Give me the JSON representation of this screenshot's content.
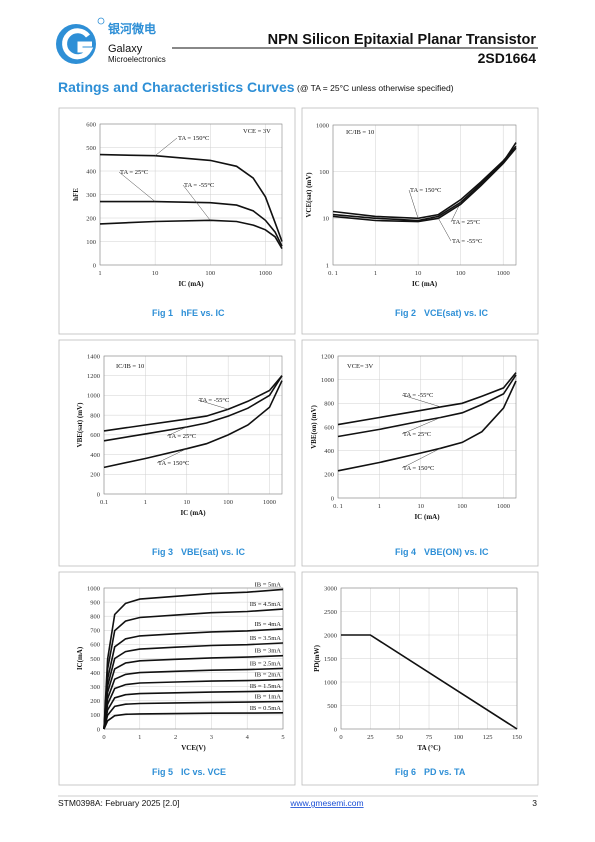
{
  "header": {
    "brand_cn": "银河微电",
    "brand": "Galaxy",
    "brand_sub": "Microelectronics",
    "title": "NPN Silicon Epitaxial Planar Transistor",
    "part": "2SD1664"
  },
  "section": {
    "title": "Ratings and Characteristics Curves",
    "condition": "(@ TA = 25°C unless otherwise specified)"
  },
  "chart_data": [
    {
      "type": "line",
      "fig": "Fig 1",
      "caption": "hFE vs. IC",
      "xlabel": "IC (mA)",
      "ylabel": "hFE",
      "annotation": "VCE = 3V",
      "xscale": "log",
      "xlim": [
        1,
        2000
      ],
      "ylim": [
        0,
        600
      ],
      "xticks": [
        1,
        10,
        100,
        1000
      ],
      "yticks": [
        0,
        100,
        200,
        300,
        400,
        500,
        600
      ],
      "grid": true,
      "x": [
        1,
        10,
        100,
        300,
        600,
        1000,
        1500,
        2000
      ],
      "series": [
        {
          "name": "TA = 150°C",
          "color": "#111111",
          "values": [
            470,
            465,
            445,
            420,
            370,
            290,
            180,
            100
          ]
        },
        {
          "name": "TA = 25°C",
          "color": "#111111",
          "values": [
            270,
            270,
            265,
            255,
            230,
            190,
            140,
            80
          ]
        },
        {
          "name": "TA = -55°C",
          "color": "#111111",
          "values": [
            175,
            185,
            190,
            185,
            170,
            150,
            120,
            70
          ]
        }
      ]
    },
    {
      "type": "line",
      "fig": "Fig 2",
      "caption": "VCE(sat) vs. IC",
      "xlabel": "IC (mA)",
      "ylabel": "VCE(sat) (mV)",
      "annotation": "IC/IB = 10",
      "xscale": "log",
      "yscale": "log",
      "xlim": [
        0.1,
        2000
      ],
      "ylim": [
        1,
        1000
      ],
      "xticks": [
        {
          "value": 0.1,
          "label": "0. 1"
        },
        1,
        10,
        100,
        1000
      ],
      "yticks": [
        1,
        10,
        100,
        1000
      ],
      "grid": true,
      "x": [
        0.1,
        1,
        10,
        30,
        100,
        300,
        1000,
        2000
      ],
      "series": [
        {
          "name": "TA = 150°C",
          "color": "#111111",
          "values": [
            14,
            11,
            10,
            12,
            25,
            60,
            170,
            350
          ]
        },
        {
          "name": "TA = 25°C",
          "color": "#111111",
          "values": [
            12,
            10,
            9,
            11,
            22,
            55,
            160,
            420
          ]
        },
        {
          "name": "TA = -55°C",
          "color": "#111111",
          "values": [
            11,
            9,
            8.5,
            10,
            20,
            50,
            150,
            320
          ]
        }
      ]
    },
    {
      "type": "line",
      "fig": "Fig 3",
      "caption": "VBE(sat) vs. IC",
      "xlabel": "IC (mA)",
      "ylabel": "VBE(sat) (mV)",
      "annotation": "IC/IB = 10",
      "xscale": "log",
      "xlim": [
        0.1,
        2000
      ],
      "ylim": [
        0,
        1400
      ],
      "xticks": [
        {
          "value": 0.1,
          "label": "0.1"
        },
        1,
        10,
        100,
        1000
      ],
      "yticks": [
        0,
        200,
        400,
        600,
        800,
        1000,
        1200,
        1400
      ],
      "grid": true,
      "x": [
        0.1,
        1,
        10,
        30,
        100,
        300,
        1000,
        2000
      ],
      "series": [
        {
          "name": "TA = -55°C",
          "color": "#111111",
          "values": [
            640,
            700,
            760,
            790,
            860,
            940,
            1050,
            1200
          ]
        },
        {
          "name": "TA = 25°C",
          "color": "#111111",
          "values": [
            540,
            610,
            680,
            720,
            790,
            870,
            1000,
            1200
          ]
        },
        {
          "name": "TA = 150°C",
          "color": "#111111",
          "values": [
            270,
            360,
            460,
            510,
            600,
            700,
            880,
            1150
          ]
        }
      ]
    },
    {
      "type": "line",
      "fig": "Fig 4",
      "caption": "VBE(ON) vs. IC",
      "xlabel": "IC (mA)",
      "ylabel": "VBE(on) (mV)",
      "annotation": "VCE= 3V",
      "xscale": "log",
      "xlim": [
        0.1,
        2000
      ],
      "ylim": [
        0,
        1200
      ],
      "xticks": [
        {
          "value": 0.1,
          "label": "0. 1"
        },
        1,
        10,
        100,
        1000
      ],
      "yticks": [
        0,
        200,
        400,
        600,
        800,
        1000,
        1200
      ],
      "grid": true,
      "x": [
        0.1,
        1,
        10,
        30,
        100,
        300,
        1000,
        2000
      ],
      "series": [
        {
          "name": "TA = -55°C",
          "color": "#111111",
          "values": [
            620,
            680,
            740,
            770,
            800,
            860,
            930,
            1060
          ]
        },
        {
          "name": "TA = 25°C",
          "color": "#111111",
          "values": [
            520,
            580,
            650,
            680,
            720,
            790,
            880,
            1040
          ]
        },
        {
          "name": "TA = 150°C",
          "color": "#111111",
          "values": [
            230,
            300,
            380,
            420,
            470,
            560,
            760,
            990
          ]
        }
      ]
    },
    {
      "type": "line",
      "fig": "Fig 5",
      "caption": "IC vs. VCE",
      "xlabel": "VCE(V)",
      "ylabel": "IC(mA)",
      "xlim": [
        0,
        5
      ],
      "ylim": [
        0,
        1000
      ],
      "xticks": [
        0,
        1,
        2,
        3,
        4,
        5
      ],
      "yticks": [
        0,
        100,
        200,
        300,
        400,
        500,
        600,
        700,
        800,
        900,
        1000
      ],
      "grid": true,
      "x": [
        0,
        0.1,
        0.3,
        0.6,
        1,
        2,
        3,
        4,
        5
      ],
      "series": [
        {
          "name": "IB = 0.5mA",
          "color": "#111111",
          "values": [
            0,
            58,
            94,
            104,
            107,
            109,
            112,
            113,
            115
          ]
        },
        {
          "name": "IB = 1mA",
          "color": "#111111",
          "values": [
            0,
            98,
            160,
            176,
            181,
            185,
            189,
            191,
            195
          ]
        },
        {
          "name": "IB = 1.5mA",
          "color": "#111111",
          "values": [
            0,
            135,
            221,
            243,
            251,
            257,
            262,
            265,
            270
          ]
        },
        {
          "name": "IB = 2mA",
          "color": "#111111",
          "values": [
            0,
            175,
            287,
            315,
            326,
            333,
            340,
            343,
            350
          ]
        },
        {
          "name": "IB = 2.5mA",
          "color": "#111111",
          "values": [
            0,
            215,
            353,
            387,
            400,
            409,
            417,
            421,
            430
          ]
        },
        {
          "name": "IB = 3mA",
          "color": "#111111",
          "values": [
            0,
            260,
            426,
            468,
            484,
            494,
            504,
            510,
            520
          ]
        },
        {
          "name": "IB = 3.5mA",
          "color": "#111111",
          "values": [
            0,
            305,
            500,
            549,
            567,
            580,
            592,
            598,
            610
          ]
        },
        {
          "name": "IB = 4mA",
          "color": "#111111",
          "values": [
            0,
            355,
            582,
            639,
            660,
            675,
            689,
            696,
            710
          ]
        },
        {
          "name": "IB = 4.5mA",
          "color": "#111111",
          "values": [
            0,
            425,
            697,
            765,
            791,
            808,
            825,
            833,
            850
          ]
        },
        {
          "name": "IB = 5mA",
          "color": "#111111",
          "values": [
            0,
            495,
            812,
            891,
            921,
            941,
            960,
            970,
            990
          ]
        }
      ]
    },
    {
      "type": "line",
      "fig": "Fig 6",
      "caption": "PD vs. TA",
      "xlabel": "TA (°C)",
      "ylabel": "PD(mW)",
      "xlim": [
        0,
        150
      ],
      "ylim": [
        0,
        3000
      ],
      "xticks": [
        0,
        25,
        50,
        75,
        100,
        125,
        150
      ],
      "yticks": [
        0,
        500,
        1000,
        1500,
        2000,
        2500,
        3000
      ],
      "grid": true,
      "x": [
        0,
        25,
        150
      ],
      "series": [
        {
          "color": "#111111",
          "values": [
            2000,
            2000,
            0
          ]
        }
      ]
    }
  ],
  "footer": {
    "doc": "STM0398A: February 2025 [2.0]",
    "url": "www.gmesemi.com",
    "page": "3"
  }
}
